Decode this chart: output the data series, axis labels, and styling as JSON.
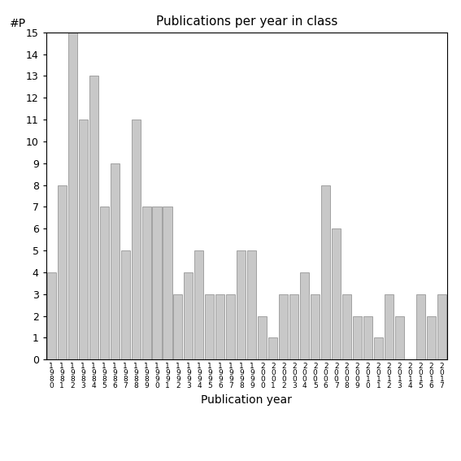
{
  "title": "Publications per year in class",
  "xlabel": "Publication year",
  "ylabel": "#P",
  "bar_color": "#c8c8c8",
  "bar_edgecolor": "#888888",
  "background_color": "#ffffff",
  "years": [
    "1980",
    "1981",
    "1982",
    "1983",
    "1984",
    "1985",
    "1986",
    "1987",
    "1988",
    "1989",
    "1990",
    "1991",
    "1992",
    "1993",
    "1994",
    "1995",
    "1996",
    "1997",
    "1998",
    "1999",
    "2000",
    "2001",
    "2002",
    "2003",
    "2004",
    "2005",
    "2006",
    "2007",
    "2008",
    "2009",
    "2010",
    "2011",
    "2012",
    "2013",
    "2014",
    "2015",
    "2016",
    "2017"
  ],
  "values": [
    4,
    8,
    15,
    11,
    13,
    7,
    9,
    5,
    11,
    7,
    7,
    7,
    3,
    4,
    5,
    3,
    3,
    3,
    5,
    5,
    2,
    1,
    3,
    3,
    4,
    3,
    8,
    6,
    3,
    2,
    2,
    1,
    3,
    2,
    0,
    3,
    2,
    3
  ],
  "ylim": [
    0,
    15
  ],
  "yticks": [
    0,
    1,
    2,
    3,
    4,
    5,
    6,
    7,
    8,
    9,
    10,
    11,
    12,
    13,
    14,
    15
  ]
}
